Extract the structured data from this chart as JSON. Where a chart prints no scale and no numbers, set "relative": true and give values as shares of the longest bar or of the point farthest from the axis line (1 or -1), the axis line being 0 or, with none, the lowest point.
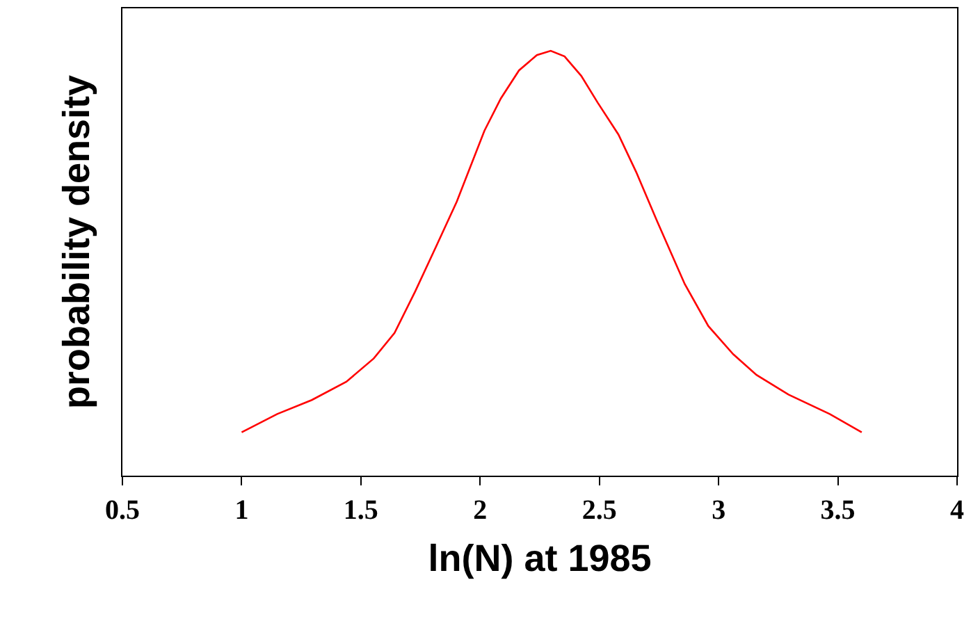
{
  "chart_data": {
    "type": "line",
    "relative": true,
    "xlabel": "ln(N) at 1985",
    "ylabel": "probability density",
    "xlim": [
      0.5,
      4
    ],
    "xticks": [
      0.5,
      1,
      1.5,
      2,
      2.5,
      3,
      3.5,
      4
    ],
    "marker": "none",
    "line_style": "solid",
    "series": [
      {
        "color": "#ff0000",
        "x": [
          1.0,
          1.149,
          1.294,
          1.439,
          1.554,
          1.641,
          1.728,
          1.815,
          1.902,
          2.018,
          2.087,
          2.163,
          2.238,
          2.296,
          2.354,
          2.424,
          2.493,
          2.58,
          2.655,
          2.742,
          2.858,
          2.957,
          3.061,
          3.159,
          3.293,
          3.466,
          3.6
        ],
        "values": [
          0.102,
          0.145,
          0.178,
          0.221,
          0.276,
          0.336,
          0.434,
          0.539,
          0.645,
          0.812,
          0.888,
          0.954,
          0.99,
          1.0,
          0.987,
          0.941,
          0.878,
          0.803,
          0.714,
          0.599,
          0.451,
          0.352,
          0.286,
          0.237,
          0.191,
          0.145,
          0.102
        ]
      }
    ]
  }
}
